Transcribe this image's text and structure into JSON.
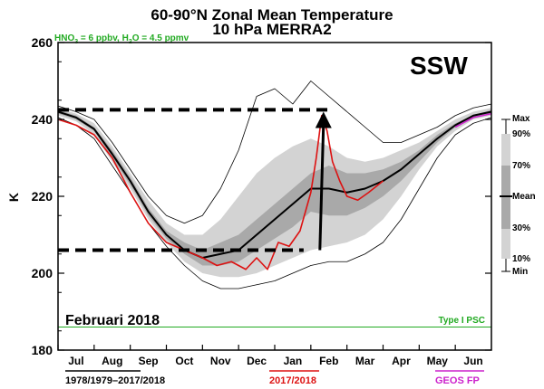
{
  "chart_data": {
    "type": "line",
    "title": "60-90°N Zonal Mean Temperature",
    "subtitle": "10 hPa   MERRA2",
    "chemistry_note": "HNO3 = 6 ppbv, H2O = 4.5 ppmv",
    "ylabel": "K",
    "ylim": [
      180,
      260
    ],
    "yticks": [
      180,
      200,
      220,
      240,
      260
    ],
    "categories": [
      "Jul",
      "Aug",
      "Sep",
      "Oct",
      "Nov",
      "Dec",
      "Jan",
      "Feb",
      "Mar",
      "Apr",
      "May",
      "Jun"
    ],
    "xlim": [
      0,
      12
    ],
    "annotation_event": "SSW",
    "annotation_period": "Februari 2018",
    "psc_label": "Type I PSC",
    "psc_threshold": 186,
    "reference_lines": [
      {
        "name": "pre-warming level",
        "y": 242.5,
        "x": [
          0,
          7.6
        ]
      },
      {
        "name": "vortex minimum level",
        "y": 206,
        "x": [
          0,
          6.8
        ]
      }
    ],
    "warming_arrow": {
      "from": [
        7.25,
        206
      ],
      "to": [
        7.35,
        242
      ]
    },
    "legend": {
      "percentile_labels": [
        "Max",
        "90%",
        "70%",
        "Mean",
        "30%",
        "10%",
        "Min"
      ],
      "bottom": [
        {
          "label": "1978/1979–2017/2018",
          "color": "#000000"
        },
        {
          "label": "2017/2018",
          "color": "#dd1111"
        },
        {
          "label": "GEOS FP",
          "color": "#cc22cc"
        }
      ]
    },
    "x": [
      0,
      0.5,
      1,
      1.5,
      2,
      2.5,
      3,
      3.5,
      4,
      4.5,
      5,
      5.5,
      6,
      6.5,
      7,
      7.5,
      8,
      8.5,
      9,
      9.5,
      10,
      10.5,
      11,
      11.5,
      12
    ],
    "series": [
      {
        "name": "Max",
        "values": [
          243.5,
          242,
          240,
          234,
          227,
          220,
          215,
          213,
          215,
          222,
          232,
          246,
          248,
          244,
          250,
          246,
          242,
          238,
          234,
          234,
          236,
          238,
          241,
          243,
          244
        ]
      },
      {
        "name": "90%",
        "values": [
          243,
          241.5,
          239,
          233,
          226,
          219,
          213,
          210,
          210,
          214,
          220,
          226,
          230,
          233,
          235,
          233,
          230,
          229,
          230,
          232,
          234,
          237,
          240,
          242,
          243
        ]
      },
      {
        "name": "70%",
        "values": [
          242.5,
          241,
          238,
          232,
          225,
          217,
          211,
          208,
          206,
          208,
          210,
          214,
          218,
          222,
          226,
          228,
          226,
          226,
          227,
          229,
          232,
          236,
          239,
          241,
          242.5
        ]
      },
      {
        "name": "Mean",
        "values": [
          242,
          240.5,
          237.5,
          231,
          224,
          216,
          210,
          206,
          204,
          205,
          206,
          210,
          214,
          218,
          222,
          222,
          221,
          222,
          224,
          227,
          231,
          235,
          238.5,
          241,
          242
        ]
      },
      {
        "name": "30%",
        "values": [
          241.5,
          240,
          237,
          230,
          223,
          215,
          209,
          205,
          202,
          202,
          203,
          206,
          209,
          212,
          216,
          215,
          215,
          217,
          220,
          224,
          229,
          234,
          238,
          240.5,
          241.5
        ]
      },
      {
        "name": "10%",
        "values": [
          241,
          239.5,
          236,
          229,
          222,
          214,
          208,
          203,
          200,
          199,
          199,
          200,
          202,
          204,
          206,
          207,
          208,
          210,
          214,
          220,
          227,
          233,
          237,
          240,
          241
        ]
      },
      {
        "name": "Min",
        "values": [
          240.5,
          238.5,
          235,
          228,
          221,
          213,
          207,
          202,
          198,
          196,
          196,
          197,
          198,
          200,
          202,
          203,
          203,
          205,
          208,
          214,
          222,
          230,
          236,
          239,
          240.5
        ]
      },
      {
        "name": "2017/2018",
        "x": [
          0,
          0.5,
          1,
          1.5,
          2,
          2.5,
          3,
          3.5,
          4,
          4.4,
          4.8,
          5.2,
          5.5,
          5.8,
          6.1,
          6.4,
          6.7,
          7,
          7.15,
          7.3,
          7.45,
          7.6,
          7.8,
          8,
          8.3,
          8.6,
          9
        ],
        "values": [
          240,
          238.5,
          236,
          230,
          221,
          213,
          208,
          206,
          204,
          202,
          203,
          201,
          204,
          201,
          208,
          207,
          211,
          221,
          230,
          241,
          237,
          229,
          224,
          220,
          219,
          221,
          224
        ]
      },
      {
        "name": "GEOS FP",
        "x": [
          11,
          11.5,
          12
        ],
        "values": [
          238,
          240.5,
          241.5
        ]
      }
    ]
  },
  "page": {
    "title": "60-90°N Zonal Mean Temperature",
    "subtitle": "10 hPa   MERRA2",
    "chem_a": "HNO",
    "chem_a_sub": "3",
    "chem_b": " = 6 ppbv, H",
    "chem_b_sub": "2",
    "chem_c": "O = 4.5 ppmv",
    "ylabel": "K",
    "event": "SSW",
    "period": "Februari 2018",
    "psc": "Type I PSC",
    "legend_bottom_1": "1978/1979–2017/2018",
    "legend_bottom_2": "2017/2018",
    "legend_bottom_3": "GEOS FP"
  },
  "colors": {
    "band_outer": "#d3d3d3",
    "band_mid": "#a9a9a9",
    "band_inner": "#6f6f6f",
    "mean": "#000000",
    "year": "#dd1111",
    "geos": "#cc22cc",
    "psc": "#22aa22"
  }
}
